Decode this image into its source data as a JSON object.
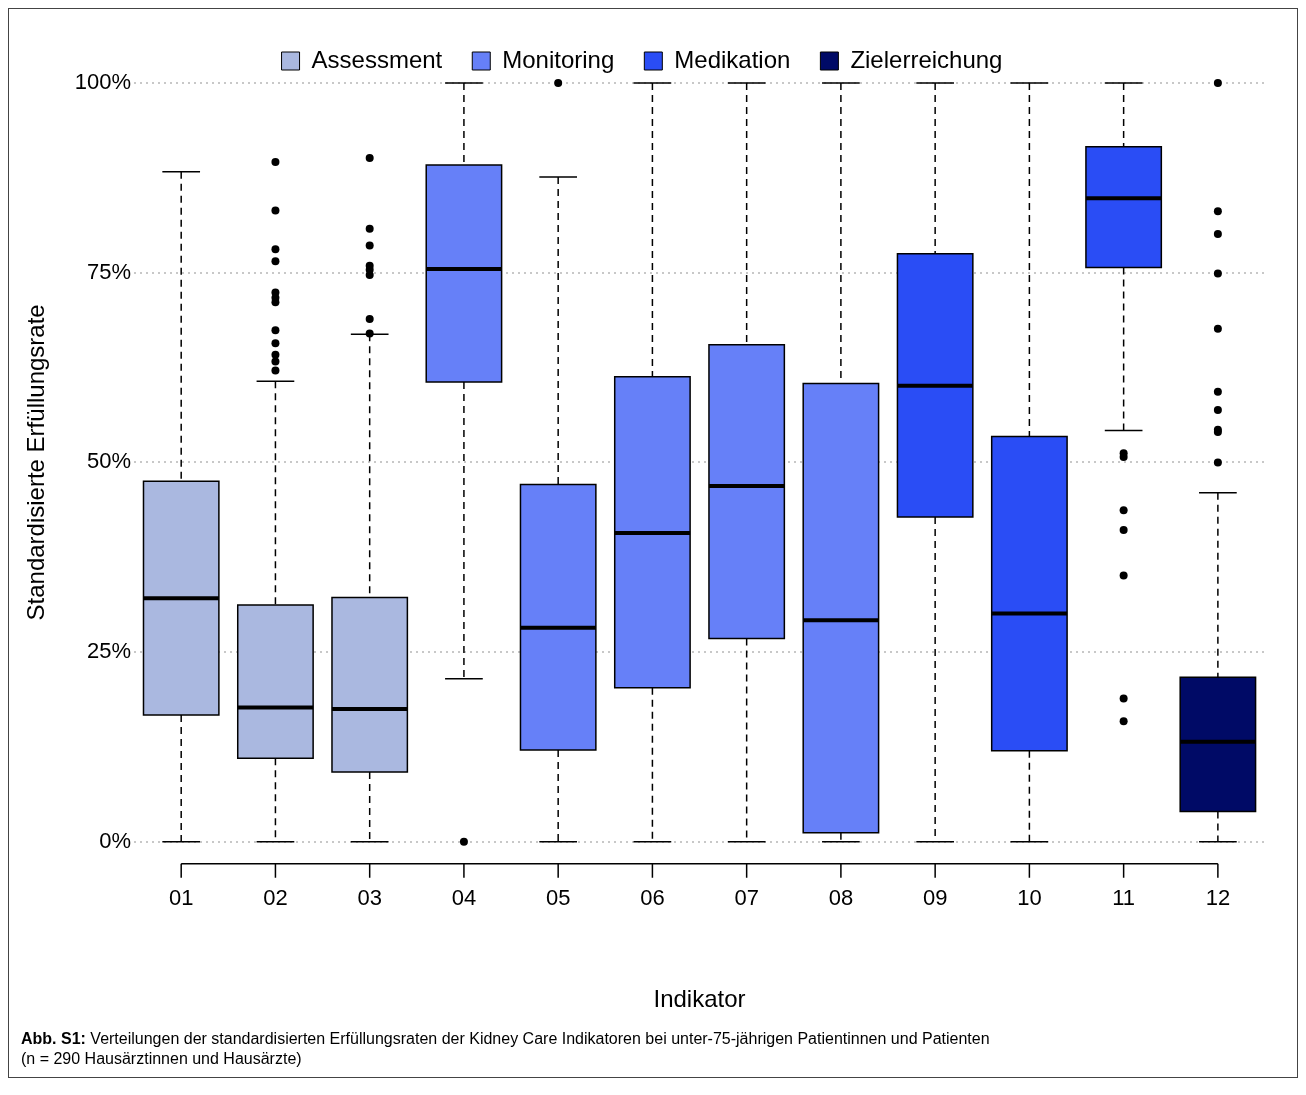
{
  "chart_data": {
    "type": "box",
    "xlabel": "Indikator",
    "ylabel": "Standardisierte Erfüllungsrate",
    "categories": [
      "01",
      "02",
      "03",
      "04",
      "05",
      "06",
      "07",
      "08",
      "09",
      "10",
      "11",
      "12"
    ],
    "ylim": [
      0,
      100
    ],
    "yticks": [
      {
        "value": 0,
        "label": "0%"
      },
      {
        "value": 25,
        "label": "25%"
      },
      {
        "value": 50,
        "label": "50%"
      },
      {
        "value": 75,
        "label": "75%"
      },
      {
        "value": 100,
        "label": "100%"
      }
    ],
    "grid": "y",
    "legend": "top",
    "marker": "circle",
    "line_style": "dashed",
    "annotations": [
      "Abb. S1: Verteilungen der standardisierten Erfüllungsraten der Kidney Care Indikatoren bei unter-75-jährigen Patientinnen und Patienten (n = 290 Hausärztinnen und Hausärzte)"
    ],
    "series": [
      {
        "name": "Assessment",
        "color": "#aab8e0",
        "boxes": [
          {
            "low": 0,
            "q1": 16.7,
            "median": 32.1,
            "q3": 47.5,
            "high": 88.3
          },
          {
            "low": 0,
            "q1": 11.0,
            "median": 17.7,
            "q3": 31.2,
            "high": 60.7,
            "outliers": [
              89.6,
              83.2,
              78.1,
              76.5,
              72.4,
              71.7,
              71.1,
              67.4,
              65.7,
              64.2,
              63.3,
              62.1
            ]
          },
          {
            "low": 0,
            "q1": 9.2,
            "median": 17.5,
            "q3": 32.2,
            "high": 66.9,
            "outliers": [
              90.1,
              80.8,
              78.6,
              75.9,
              75.4,
              74.7,
              68.9,
              67.0
            ]
          },
          null,
          null,
          null,
          null,
          null,
          null,
          null,
          null,
          null
        ]
      },
      {
        "name": "Monitoring",
        "color": "#6680f8",
        "boxes": [
          null,
          null,
          null,
          {
            "low": 21.5,
            "q1": 60.6,
            "median": 75.5,
            "q3": 89.2,
            "high": 100,
            "outliers": [
              0
            ]
          },
          {
            "low": 0,
            "q1": 12.1,
            "median": 28.2,
            "q3": 47.1,
            "high": 87.6,
            "outliers": [
              100
            ]
          },
          {
            "low": 0,
            "q1": 20.3,
            "median": 40.7,
            "q3": 61.3,
            "high": 100
          },
          {
            "low": 0,
            "q1": 26.8,
            "median": 46.9,
            "q3": 65.5,
            "high": 100
          },
          {
            "low": 0,
            "q1": 1.2,
            "median": 29.2,
            "q3": 60.4,
            "high": 100
          },
          null,
          null,
          null,
          null
        ]
      },
      {
        "name": "Medikation",
        "color": "#2a4df5",
        "boxes": [
          null,
          null,
          null,
          null,
          null,
          null,
          null,
          null,
          {
            "low": 0,
            "q1": 42.8,
            "median": 60.1,
            "q3": 77.5,
            "high": 100
          },
          {
            "low": 0,
            "q1": 12.0,
            "median": 30.1,
            "q3": 53.4,
            "high": 100
          },
          {
            "low": 54.2,
            "q1": 75.7,
            "median": 84.8,
            "q3": 91.6,
            "high": 100,
            "outliers": [
              51.2,
              50.7,
              43.7,
              41.1,
              35.1,
              18.9,
              15.9
            ]
          },
          null
        ]
      },
      {
        "name": "Zielerreichung",
        "color": "#000a66",
        "boxes": [
          null,
          null,
          null,
          null,
          null,
          null,
          null,
          null,
          null,
          null,
          null,
          {
            "low": 0,
            "q1": 4.0,
            "median": 13.2,
            "q3": 21.7,
            "high": 46.0,
            "outliers": [
              100,
              83.1,
              80.1,
              74.9,
              67.6,
              59.3,
              56.9,
              54.3,
              54.0,
              50.0
            ]
          }
        ]
      }
    ]
  }
}
